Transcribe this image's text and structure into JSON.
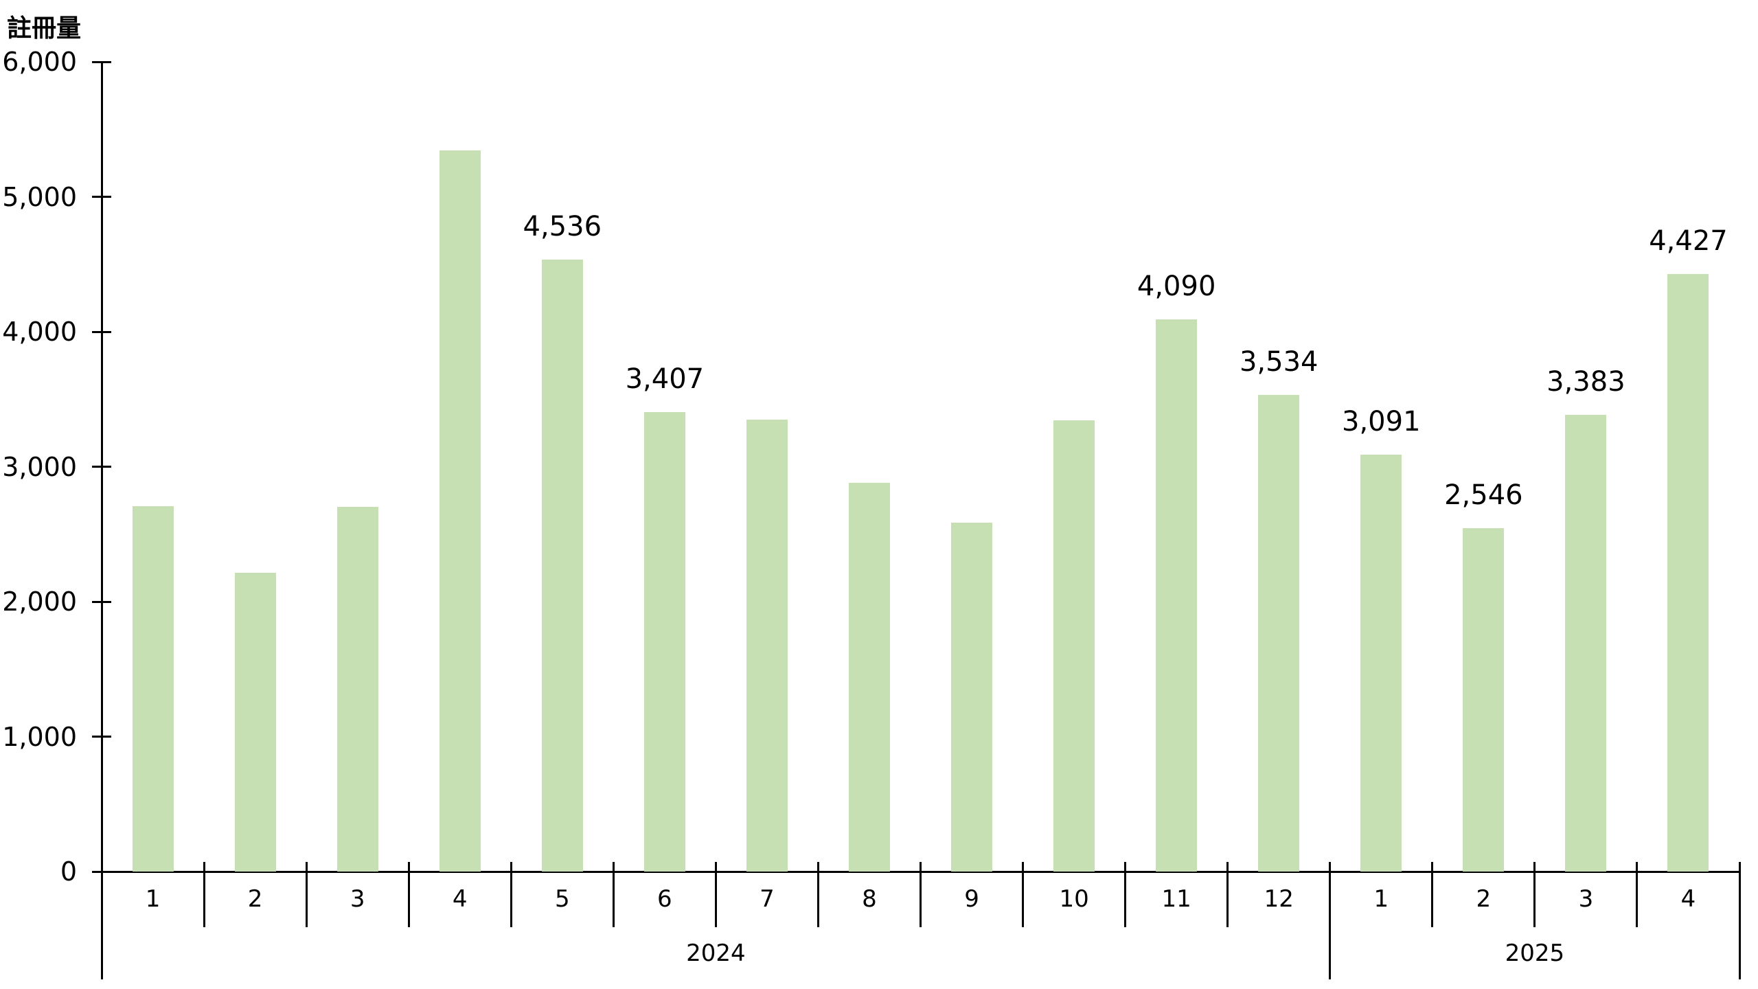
{
  "chart_data": {
    "type": "bar",
    "title": "註冊量",
    "ylabel": "註冊量",
    "xlabel": "",
    "ylim": [
      0,
      6000
    ],
    "ytick_interval": 1000,
    "yticks": [
      {
        "value": 0,
        "label": "0"
      },
      {
        "value": 1000,
        "label": "1,000"
      },
      {
        "value": 2000,
        "label": "2,000"
      },
      {
        "value": 3000,
        "label": "3,000"
      },
      {
        "value": 4000,
        "label": "4,000"
      },
      {
        "value": 5000,
        "label": "5,000"
      },
      {
        "value": 6000,
        "label": "6,000"
      }
    ],
    "grid": false,
    "legend_position": "none",
    "bar_color": "#c6e0b4",
    "axis_color": "#000000",
    "label_color": "#000000",
    "groups": [
      {
        "year": "2024",
        "months": [
          "1",
          "2",
          "3",
          "4",
          "5",
          "6",
          "7",
          "8",
          "9",
          "10",
          "11",
          "12"
        ]
      },
      {
        "year": "2025",
        "months": [
          "1",
          "2",
          "3",
          "4"
        ]
      }
    ],
    "series": [
      {
        "name": "註冊量",
        "points": [
          {
            "year": "2024",
            "month": "1",
            "value": 2707,
            "data_label": ""
          },
          {
            "year": "2024",
            "month": "2",
            "value": 2213,
            "data_label": ""
          },
          {
            "year": "2024",
            "month": "3",
            "value": 2700,
            "data_label": ""
          },
          {
            "year": "2024",
            "month": "4",
            "value": 5343,
            "data_label": ""
          },
          {
            "year": "2024",
            "month": "5",
            "value": 4536,
            "data_label": "4,536"
          },
          {
            "year": "2024",
            "month": "6",
            "value": 3407,
            "data_label": "3,407"
          },
          {
            "year": "2024",
            "month": "7",
            "value": 3350,
            "data_label": ""
          },
          {
            "year": "2024",
            "month": "8",
            "value": 2881,
            "data_label": ""
          },
          {
            "year": "2024",
            "month": "9",
            "value": 2586,
            "data_label": ""
          },
          {
            "year": "2024",
            "month": "10",
            "value": 3343,
            "data_label": ""
          },
          {
            "year": "2024",
            "month": "11",
            "value": 4090,
            "data_label": "4,090"
          },
          {
            "year": "2024",
            "month": "12",
            "value": 3534,
            "data_label": "3,534"
          },
          {
            "year": "2025",
            "month": "1",
            "value": 3091,
            "data_label": "3,091"
          },
          {
            "year": "2025",
            "month": "2",
            "value": 2546,
            "data_label": "2,546"
          },
          {
            "year": "2025",
            "month": "3",
            "value": 3383,
            "data_label": "3,383"
          },
          {
            "year": "2025",
            "month": "4",
            "value": 4427,
            "data_label": "4,427"
          }
        ]
      }
    ]
  }
}
